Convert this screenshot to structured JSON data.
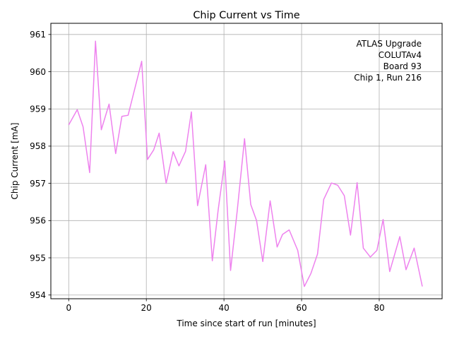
{
  "chart_data": {
    "type": "line",
    "title": "Chip Current vs Time",
    "xlabel": "Time since start of run [minutes]",
    "ylabel": "Chip Current [mA]",
    "xlim": [
      -4.6,
      96.2
    ],
    "ylim": [
      953.9,
      961.3
    ],
    "xticks": [
      0,
      20,
      40,
      60,
      80
    ],
    "yticks": [
      954,
      955,
      956,
      957,
      958,
      959,
      960,
      961
    ],
    "grid": true,
    "line_color": "#ee82ee",
    "annotation": [
      "ATLAS Upgrade",
      "COLUTAv4",
      "Board 93",
      "Chip 1, Run 216"
    ],
    "annotation_placement": "top-right",
    "series": [
      {
        "x": [
          0,
          2.2,
          3.7,
          5.4,
          6.9,
          8.4,
          10.4,
          12.1,
          13.7,
          15.3,
          18.8,
          20.3,
          21.9,
          23.3,
          25.1,
          26.9,
          28.4,
          30.1,
          31.6,
          33.2,
          35.3,
          37.0,
          38.5,
          40.2,
          41.7,
          43.4,
          45.3,
          46.9,
          48.4,
          50.0,
          51.9,
          53.7,
          55.1,
          56.8,
          59.0,
          60.7,
          62.4,
          64.1,
          65.7,
          67.7,
          69.3,
          71.0,
          72.6,
          74.3,
          75.9,
          77.7,
          79.4,
          81.0,
          82.7,
          85.3,
          86.9,
          89.0,
          91.1
        ],
        "y": [
          958.57,
          958.98,
          958.52,
          957.29,
          960.82,
          958.44,
          959.13,
          957.8,
          958.8,
          958.83,
          960.28,
          957.64,
          957.9,
          958.35,
          957.0,
          957.85,
          957.47,
          957.86,
          958.92,
          956.4,
          957.5,
          954.92,
          956.28,
          957.6,
          954.66,
          956.25,
          958.2,
          956.43,
          956.0,
          954.9,
          956.53,
          955.29,
          955.63,
          955.75,
          955.2,
          954.23,
          954.58,
          955.1,
          956.57,
          957.01,
          956.95,
          956.67,
          955.61,
          957.02,
          955.26,
          955.02,
          955.2,
          956.03,
          954.63,
          955.57,
          954.68,
          955.26,
          954.23
        ]
      }
    ]
  }
}
